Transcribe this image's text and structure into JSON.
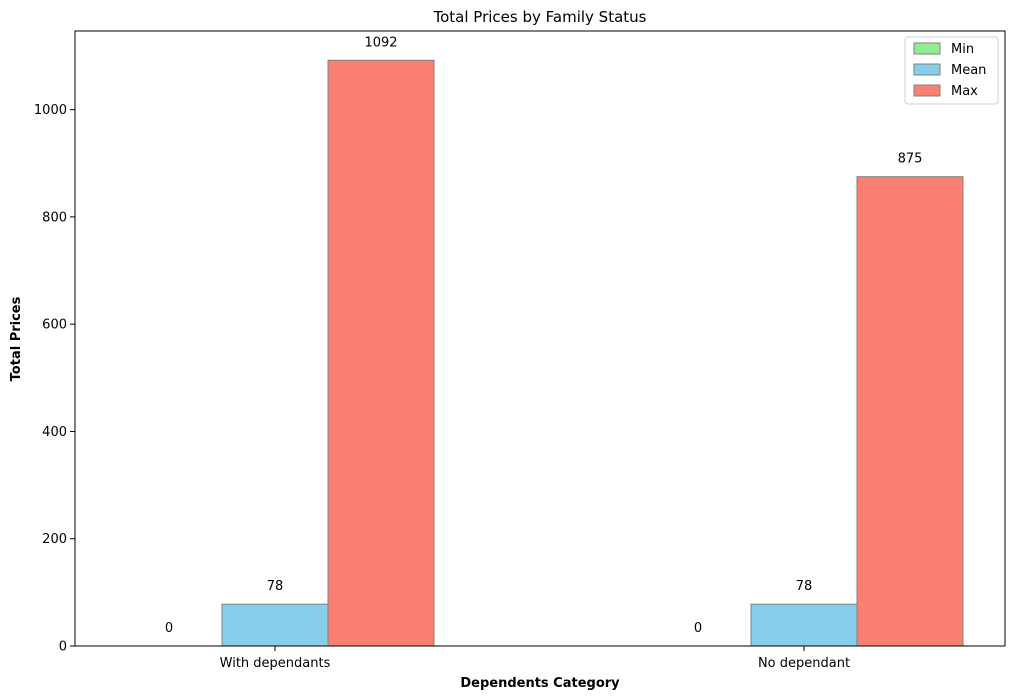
{
  "chart_data": {
    "type": "bar",
    "title": "Total Prices by Family Status",
    "xlabel": "Dependents Category",
    "ylabel": "Total Prices",
    "categories": [
      "With dependants",
      "No dependant"
    ],
    "series": [
      {
        "name": "Min",
        "values": [
          0,
          0
        ],
        "color": "#90ee90"
      },
      {
        "name": "Mean",
        "values": [
          78,
          78
        ],
        "color": "#87ceeb"
      },
      {
        "name": "Max",
        "values": [
          1092,
          875
        ],
        "color": "#fa8072"
      }
    ],
    "value_labels": [
      [
        "0",
        "0"
      ],
      [
        "78",
        "78"
      ],
      [
        "1092",
        "875"
      ]
    ],
    "yticks": [
      0,
      200,
      400,
      600,
      800,
      1000
    ],
    "ytick_labels": [
      "0",
      "200",
      "400",
      "600",
      "800",
      "1000"
    ],
    "ylim": [
      0,
      1146.6
    ],
    "grid": false,
    "legend_position": "top-right",
    "bar_edge_color": "#808080"
  }
}
